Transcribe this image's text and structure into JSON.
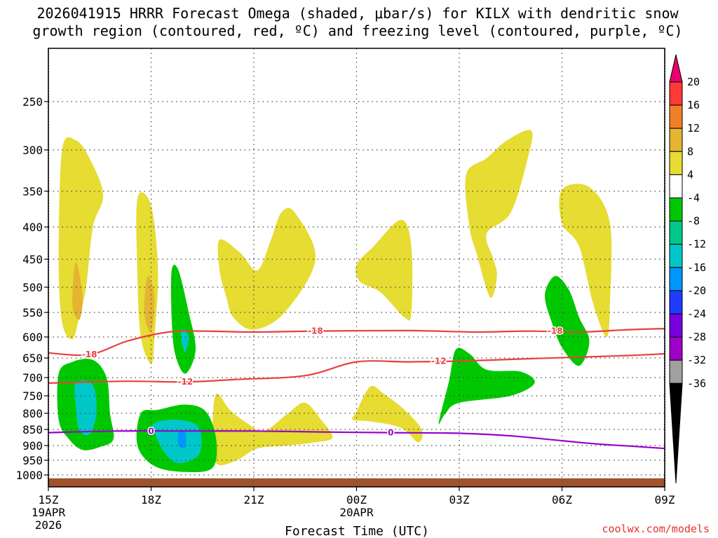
{
  "chart_data": {
    "type": "contour-time-height",
    "title_line1": "2026041915 HRRR Forecast Omega (shaded, μbar/s) for KILX with dendritic snow",
    "title_line2": "growth region (contoured, red, ºC) and freezing level (contoured, purple, ºC)",
    "xlabel": "Forecast Time (UTC)",
    "credit": "coolwx.com/models",
    "x_ticks": [
      {
        "hour": 0,
        "label": "15Z",
        "sub": [
          "19APR",
          "2026"
        ]
      },
      {
        "hour": 3,
        "label": "18Z",
        "sub": []
      },
      {
        "hour": 6,
        "label": "21Z",
        "sub": []
      },
      {
        "hour": 9,
        "label": "00Z",
        "sub": [
          "20APR"
        ]
      },
      {
        "hour": 12,
        "label": "03Z",
        "sub": []
      },
      {
        "hour": 15,
        "label": "06Z",
        "sub": []
      },
      {
        "hour": 18,
        "label": "09Z",
        "sub": []
      }
    ],
    "x_range_hours": [
      0,
      18
    ],
    "y_ticks": [
      "250",
      "300",
      "350",
      "400",
      "450",
      "500",
      "550",
      "600",
      "650",
      "700",
      "750",
      "800",
      "850",
      "900",
      "950",
      "1000"
    ],
    "y_range_hpa": [
      200,
      1025
    ],
    "colorbar": {
      "labels": [
        "20",
        "16",
        "12",
        "8",
        "4",
        "-4",
        "-8",
        "-12",
        "-16",
        "-20",
        "-24",
        "-28",
        "-32",
        "-36"
      ],
      "colors": [
        "#e8006e",
        "#ff3838",
        "#f08028",
        "#e4b432",
        "#e6dc32",
        "#ffffff",
        "#00c800",
        "#00c88c",
        "#00c8c8",
        "#0096ff",
        "#1e3cff",
        "#7800dc",
        "#a000c8",
        "#a0a0a0",
        "#000000"
      ]
    },
    "omega_regions": [
      {
        "name": "yellow-1",
        "color": "#e6dc32",
        "pts": [
          [
            0.4,
            300
          ],
          [
            0.8,
            290
          ],
          [
            1.2,
            310
          ],
          [
            1.6,
            355
          ],
          [
            1.3,
            400
          ],
          [
            1.1,
            500
          ],
          [
            0.9,
            560
          ],
          [
            0.7,
            605
          ],
          [
            0.4,
            570
          ],
          [
            0.3,
            450
          ]
        ]
      },
      {
        "name": "orange-1",
        "color": "#e4b432",
        "pts": [
          [
            0.8,
            455
          ],
          [
            1.0,
            520
          ],
          [
            0.9,
            565
          ],
          [
            0.7,
            535
          ]
        ]
      },
      {
        "name": "yellow-2",
        "color": "#e6dc32",
        "pts": [
          [
            2.6,
            360
          ],
          [
            3.0,
            370
          ],
          [
            3.2,
            470
          ],
          [
            3.1,
            600
          ],
          [
            3.0,
            665
          ],
          [
            2.7,
            600
          ],
          [
            2.6,
            480
          ]
        ]
      },
      {
        "name": "orange-2",
        "color": "#e4b432",
        "pts": [
          [
            2.9,
            480
          ],
          [
            3.1,
            520
          ],
          [
            3.0,
            590
          ],
          [
            2.8,
            550
          ]
        ]
      },
      {
        "name": "yellow-3",
        "color": "#e6dc32",
        "pts": [
          [
            5.0,
            420
          ],
          [
            5.6,
            440
          ],
          [
            6.1,
            470
          ],
          [
            6.5,
            420
          ],
          [
            6.8,
            380
          ],
          [
            7.2,
            380
          ],
          [
            7.8,
            450
          ],
          [
            6.9,
            550
          ],
          [
            6.0,
            585
          ],
          [
            5.4,
            560
          ],
          [
            5.2,
            520
          ],
          [
            5.0,
            470
          ]
        ]
      },
      {
        "name": "yellow-4",
        "color": "#e6dc32",
        "pts": [
          [
            9.0,
            460
          ],
          [
            9.5,
            430
          ],
          [
            10.3,
            390
          ],
          [
            10.6,
            430
          ],
          [
            10.6,
            550
          ],
          [
            10.4,
            560
          ],
          [
            9.7,
            510
          ],
          [
            9.1,
            490
          ]
        ]
      },
      {
        "name": "yellow-5",
        "color": "#e6dc32",
        "pts": [
          [
            12.2,
            330
          ],
          [
            12.8,
            310
          ],
          [
            13.4,
            290
          ],
          [
            14.1,
            280
          ],
          [
            14.0,
            310
          ],
          [
            13.5,
            380
          ],
          [
            12.8,
            410
          ],
          [
            13.0,
            450
          ],
          [
            13.1,
            480
          ],
          [
            12.9,
            520
          ],
          [
            12.5,
            440
          ],
          [
            12.3,
            400
          ]
        ]
      },
      {
        "name": "yellow-6",
        "color": "#e6dc32",
        "pts": [
          [
            15.0,
            348
          ],
          [
            15.8,
            345
          ],
          [
            16.4,
            395
          ],
          [
            16.4,
            530
          ],
          [
            16.3,
            600
          ],
          [
            15.9,
            530
          ],
          [
            15.5,
            430
          ],
          [
            15.0,
            395
          ]
        ]
      },
      {
        "name": "yellow-7",
        "color": "#e6dc32",
        "pts": [
          [
            4.9,
            745
          ],
          [
            5.3,
            790
          ],
          [
            5.8,
            830
          ],
          [
            6.3,
            855
          ],
          [
            7.0,
            800
          ],
          [
            7.5,
            770
          ],
          [
            8.0,
            825
          ],
          [
            8.3,
            875
          ],
          [
            7.8,
            890
          ],
          [
            7.0,
            900
          ],
          [
            6.1,
            910
          ],
          [
            5.5,
            950
          ],
          [
            4.9,
            960
          ],
          [
            4.8,
            850
          ]
        ]
      },
      {
        "name": "yellow-8",
        "color": "#e6dc32",
        "pts": [
          [
            9.0,
            795
          ],
          [
            9.4,
            725
          ],
          [
            9.8,
            745
          ],
          [
            10.4,
            790
          ],
          [
            10.9,
            850
          ],
          [
            10.8,
            890
          ],
          [
            10.3,
            845
          ],
          [
            9.4,
            825
          ],
          [
            8.9,
            820
          ]
        ]
      },
      {
        "name": "green-1",
        "color": "#00c800",
        "pts": [
          [
            0.3,
            690
          ],
          [
            0.7,
            660
          ],
          [
            1.3,
            655
          ],
          [
            1.7,
            700
          ],
          [
            1.8,
            800
          ],
          [
            1.9,
            880
          ],
          [
            1.5,
            905
          ],
          [
            1.0,
            915
          ],
          [
            0.6,
            880
          ],
          [
            0.3,
            820
          ]
        ]
      },
      {
        "name": "teal-1",
        "color": "#00c8c8",
        "pts": [
          [
            0.8,
            715
          ],
          [
            1.3,
            720
          ],
          [
            1.4,
            800
          ],
          [
            1.2,
            865
          ],
          [
            0.9,
            850
          ],
          [
            0.8,
            780
          ]
        ]
      },
      {
        "name": "green-2",
        "color": "#00c800",
        "pts": [
          [
            3.6,
            470
          ],
          [
            3.8,
            470
          ],
          [
            4.1,
            550
          ],
          [
            4.3,
            630
          ],
          [
            4.0,
            690
          ],
          [
            3.7,
            640
          ],
          [
            3.6,
            560
          ]
        ]
      },
      {
        "name": "teal-2",
        "color": "#00c8c8",
        "pts": [
          [
            3.9,
            585
          ],
          [
            4.1,
            600
          ],
          [
            4.0,
            635
          ],
          [
            3.9,
            615
          ]
        ]
      },
      {
        "name": "green-3",
        "color": "#00c800",
        "pts": [
          [
            2.7,
            800
          ],
          [
            3.2,
            790
          ],
          [
            4.0,
            775
          ],
          [
            4.6,
            795
          ],
          [
            4.9,
            880
          ],
          [
            4.8,
            975
          ],
          [
            4.0,
            990
          ],
          [
            3.1,
            970
          ],
          [
            2.6,
            900
          ]
        ]
      },
      {
        "name": "teal-3",
        "color": "#00c8c8",
        "pts": [
          [
            3.1,
            830
          ],
          [
            3.8,
            820
          ],
          [
            4.4,
            845
          ],
          [
            4.4,
            930
          ],
          [
            3.8,
            960
          ],
          [
            3.4,
            925
          ],
          [
            3.1,
            860
          ]
        ]
      },
      {
        "name": "cyan-3",
        "color": "#0096ff",
        "pts": [
          [
            3.8,
            860
          ],
          [
            4.0,
            860
          ],
          [
            4.0,
            905
          ],
          [
            3.8,
            900
          ]
        ]
      },
      {
        "name": "green-4",
        "color": "#00c800",
        "pts": [
          [
            11.7,
            710
          ],
          [
            11.9,
            630
          ],
          [
            12.3,
            640
          ],
          [
            12.8,
            680
          ],
          [
            13.8,
            685
          ],
          [
            14.2,
            715
          ],
          [
            13.5,
            750
          ],
          [
            12.0,
            770
          ],
          [
            11.6,
            800
          ],
          [
            11.4,
            830
          ]
        ]
      },
      {
        "name": "green-5",
        "color": "#00c800",
        "pts": [
          [
            14.5,
            515
          ],
          [
            14.8,
            480
          ],
          [
            15.2,
            505
          ],
          [
            15.5,
            560
          ],
          [
            15.8,
            610
          ],
          [
            15.5,
            670
          ],
          [
            15.0,
            625
          ],
          [
            14.7,
            570
          ]
        ]
      }
    ],
    "dgz_contours": [
      {
        "label": "-18",
        "pts": [
          [
            0,
            638
          ],
          [
            1.2,
            642
          ],
          [
            2.3,
            610
          ],
          [
            3.5,
            590
          ],
          [
            4.5,
            588
          ],
          [
            6,
            590
          ],
          [
            7.8,
            588
          ],
          [
            10.5,
            587
          ],
          [
            12.5,
            590
          ],
          [
            14,
            588
          ],
          [
            15.5,
            590
          ],
          [
            17,
            585
          ],
          [
            18,
            583
          ]
        ],
        "label_at": 1
      }
    ],
    "dgz_contours_extra": [
      {
        "label": "-12",
        "pts": [
          [
            0,
            715
          ],
          [
            2.3,
            710
          ],
          [
            4.0,
            712
          ],
          [
            5.5,
            705
          ],
          [
            7.5,
            695
          ],
          [
            9,
            660
          ],
          [
            10.5,
            660
          ],
          [
            12,
            658
          ],
          [
            14,
            652
          ],
          [
            15.5,
            648
          ],
          [
            17,
            644
          ],
          [
            18,
            640
          ]
        ],
        "label_at": 2
      },
      {
        "label": "-18",
        "pts": [
          [
            7.8,
            588
          ]
        ],
        "label_at": 0
      },
      {
        "label": "-12",
        "pts": [
          [
            11.4,
            658
          ]
        ],
        "label_at": 0
      },
      {
        "label": "-18",
        "pts": [
          [
            14.8,
            588
          ]
        ],
        "label_at": 0
      }
    ],
    "freezing_level": {
      "label": "0",
      "pts": [
        [
          0,
          860
        ],
        [
          2.0,
          855
        ],
        [
          4.0,
          855
        ],
        [
          6.0,
          855
        ],
        [
          8.0,
          858
        ],
        [
          10.0,
          860
        ],
        [
          12.0,
          862
        ],
        [
          13.5,
          870
        ],
        [
          15.0,
          885
        ],
        [
          16.0,
          895
        ],
        [
          17.0,
          902
        ],
        [
          18.0,
          910
        ]
      ],
      "label_at": [
        3.0,
        10.0
      ]
    },
    "ground_hpa": 1010
  }
}
